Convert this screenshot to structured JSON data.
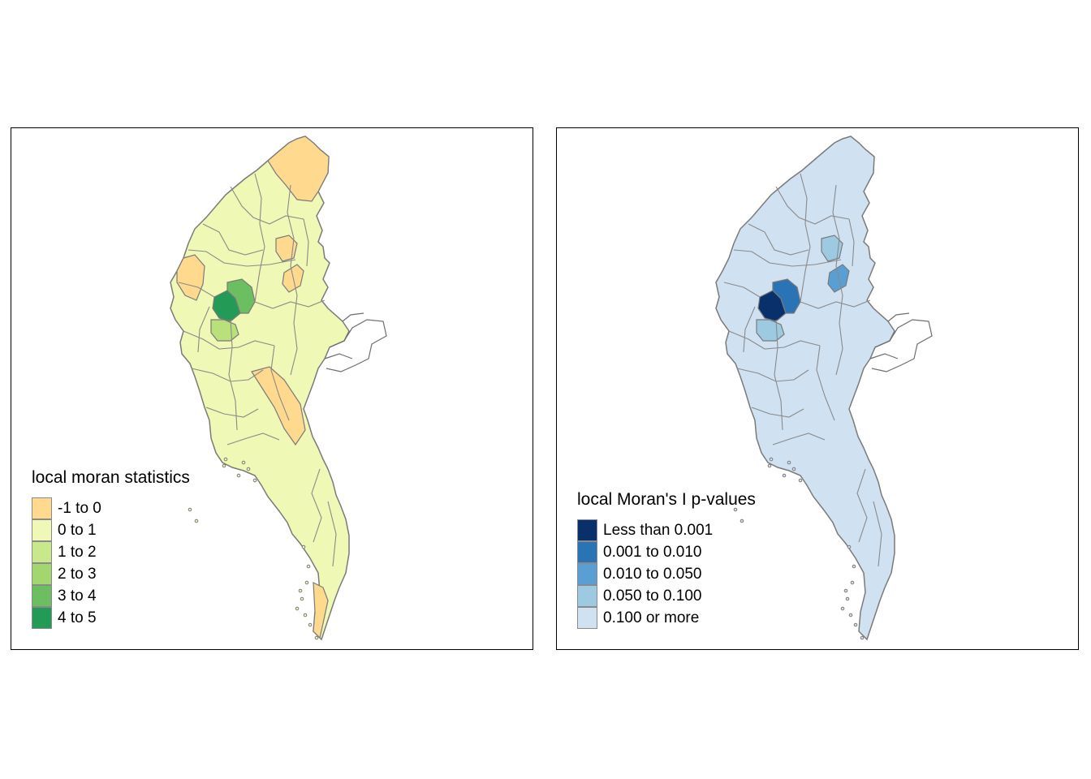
{
  "maps": [
    {
      "legend_title": "local moran statistics",
      "default_fill": "#eff8b4",
      "highlights": [
        {
          "region": "central-west",
          "fill": "#239a55"
        },
        {
          "region": "central",
          "fill": "#6bbf60"
        },
        {
          "region": "central-south",
          "fill": "#b9e07b"
        },
        {
          "region": "north",
          "fill": "#fed98e"
        },
        {
          "region": "northeast",
          "fill": "#fed98e"
        },
        {
          "region": "east-ridge",
          "fill": "#fed98e"
        },
        {
          "region": "west",
          "fill": "#fed98e"
        },
        {
          "region": "south-east",
          "fill": "#fed98e"
        },
        {
          "region": "tail",
          "fill": "#fed98e"
        }
      ],
      "legend": [
        {
          "label": "-1 to 0",
          "color": "#fed98e"
        },
        {
          "label": "0 to 1",
          "color": "#eff8b4"
        },
        {
          "label": "1 to 2",
          "color": "#c9e88c"
        },
        {
          "label": "2 to 3",
          "color": "#a3d66f"
        },
        {
          "label": "3 to 4",
          "color": "#6bbf60"
        },
        {
          "label": "4 to 5",
          "color": "#239a55"
        }
      ]
    },
    {
      "legend_title": "local Moran's I p-values",
      "default_fill": "#d0e1f2",
      "highlights": [
        {
          "region": "central-west",
          "fill": "#08306b"
        },
        {
          "region": "central",
          "fill": "#2a73b5"
        },
        {
          "region": "central-south",
          "fill": "#9ecae1"
        },
        {
          "region": "northeast",
          "fill": "#9ecae1"
        },
        {
          "region": "east-ridge",
          "fill": "#5a9fd4"
        }
      ],
      "legend": [
        {
          "label": "Less than 0.001",
          "color": "#08306b"
        },
        {
          "label": "0.001 to 0.010",
          "color": "#2a73b5"
        },
        {
          "label": "0.010 to 0.050",
          "color": "#5a9fd4"
        },
        {
          "label": "0.050 to 0.100",
          "color": "#9ecae1"
        },
        {
          "label": "0.100 or more",
          "color": "#d0e1f2"
        }
      ]
    }
  ]
}
